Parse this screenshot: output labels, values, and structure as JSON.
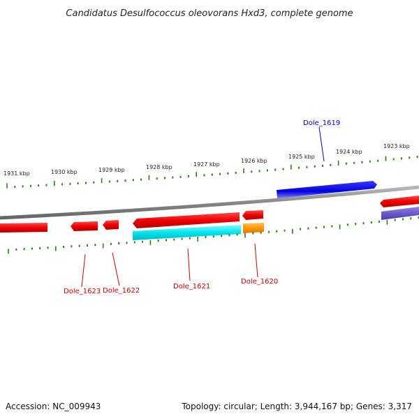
{
  "title": "Candidatus Desulfococcus oleovorans Hxd3, complete genome",
  "footer": {
    "accession": "Accession: NC_009943",
    "summary": "Topology: circular; Length: 3,944,167 bp; Genes: 3,317"
  },
  "scale": {
    "unit": "kbp",
    "labels": [
      "1931 kbp",
      "1930 kbp",
      "1929 kbp",
      "1928 kbp",
      "1927 kbp",
      "1926 kbp",
      "1925 kbp",
      "1924 kbp",
      "1923 kbp"
    ]
  },
  "gene_labels": [
    {
      "name": "Dole_1619",
      "color": "#0000cc"
    },
    {
      "name": "Dole_1620",
      "color": "#cc0000"
    },
    {
      "name": "Dole_1621",
      "color": "#cc0000"
    },
    {
      "name": "Dole_1622",
      "color": "#cc0000"
    },
    {
      "name": "Dole_1623",
      "color": "#cc0000"
    }
  ],
  "colors": {
    "backbone": "#888888",
    "tick": "#2e7d1a",
    "cds": "#ee0000",
    "blue_gene": "#0000dd",
    "cyan_gene": "#00e5ee",
    "orange_gene": "#ff9900",
    "purple_gene": "#6a5acd"
  }
}
